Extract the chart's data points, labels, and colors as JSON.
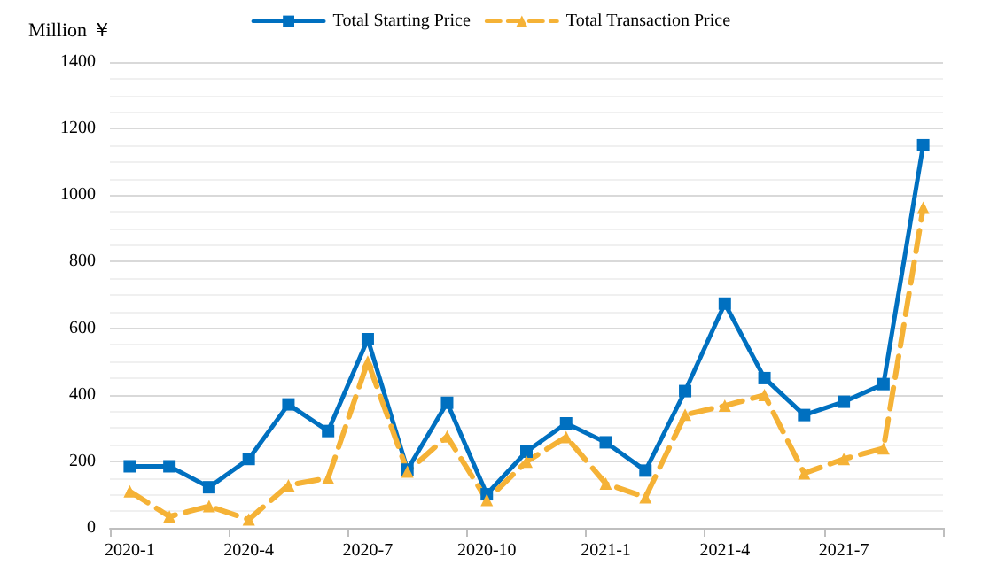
{
  "chart_data": {
    "type": "line",
    "ylabel": "Million ￥",
    "categories": [
      "2020-1",
      null,
      null,
      "2020-4",
      null,
      null,
      "2020-7",
      null,
      null,
      "2020-10",
      null,
      null,
      "2021-1",
      null,
      null,
      "2021-4",
      null,
      null,
      "2021-7",
      null,
      null
    ],
    "series": [
      {
        "name": "Total Starting Price",
        "color": "#0070c0",
        "marker": "square",
        "line_style": "solid",
        "values": [
          185,
          185,
          122,
          207,
          371,
          291,
          567,
          175,
          376,
          101,
          229,
          314,
          257,
          172,
          411,
          674,
          450,
          339,
          379,
          432,
          1150
        ]
      },
      {
        "name": "Total Transaction Price",
        "color": "#f5b236",
        "marker": "triangle",
        "line_style": "dashed",
        "values": [
          110,
          34,
          65,
          25,
          128,
          150,
          500,
          169,
          275,
          84,
          199,
          273,
          133,
          92,
          340,
          367,
          399,
          164,
          207,
          239,
          962
        ]
      }
    ],
    "ylim": [
      0,
      1400
    ],
    "yticks": [
      0,
      200,
      400,
      600,
      800,
      1000,
      1200,
      1400
    ],
    "grid": "y",
    "legend": "top"
  }
}
